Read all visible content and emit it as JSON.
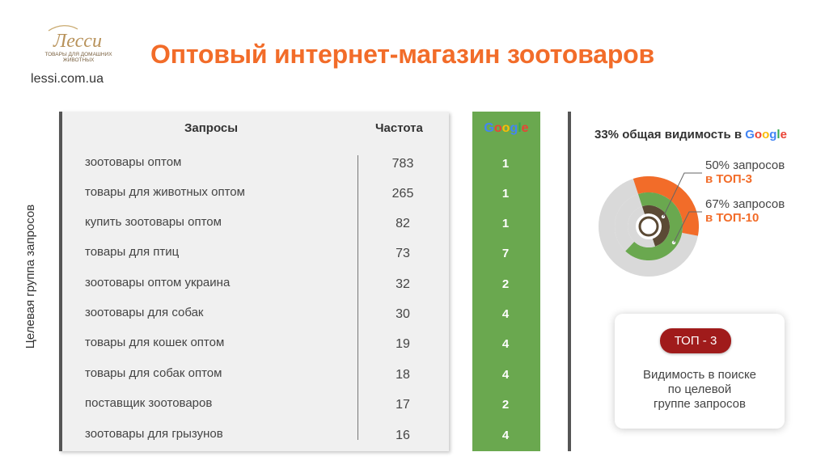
{
  "logo": {
    "name": "Лесси",
    "tagline_1": "ТОВАРЫ ДЛЯ ДОМАШНИХ",
    "tagline_2": "ЖИВОТНЫХ"
  },
  "site_url": "lessi.com.ua",
  "title": "Оптовый интернет-магазин зоотоваров",
  "side_label": "Целевая группа запросов",
  "table": {
    "col_query": "Запросы",
    "col_freq": "Частота",
    "col_google": [
      "G",
      "o",
      "o",
      "g",
      "l",
      "e"
    ],
    "rows": [
      {
        "query": "зоотовары оптом",
        "freq": "783",
        "pos": "1"
      },
      {
        "query": "товары для животных оптом",
        "freq": "265",
        "pos": "1"
      },
      {
        "query": "купить зоотовары оптом",
        "freq": "82",
        "pos": "1"
      },
      {
        "query": "товары для птиц",
        "freq": "73",
        "pos": "7"
      },
      {
        "query": "зоотовары оптом украина",
        "freq": "32",
        "pos": "2"
      },
      {
        "query": "зоотовары для собак",
        "freq": "30",
        "pos": "4"
      },
      {
        "query": "товары для кошек оптом",
        "freq": "19",
        "pos": "4"
      },
      {
        "query": "товары для собак оптом",
        "freq": "18",
        "pos": "4"
      },
      {
        "query": "поставщик зоотоваров",
        "freq": "17",
        "pos": "2"
      },
      {
        "query": "зоотовары для грызунов",
        "freq": "16",
        "pos": "4"
      }
    ]
  },
  "visibility": {
    "title_prefix": "33% общая видимость в ",
    "google_letters": [
      "G",
      "o",
      "o",
      "g",
      "l",
      "e"
    ],
    "top3_pct": "50% запросов",
    "top3_label": "в ТОП-3",
    "top10_pct": "67% запросов",
    "top10_label": "в ТОП-10",
    "rings": [
      {
        "name": "overall",
        "value": 0.33,
        "fill": "#f26c29"
      },
      {
        "name": "top-10",
        "value": 0.67,
        "fill": "#6aa84f"
      },
      {
        "name": "top-3",
        "value": 0.5,
        "fill": "#5b4a35"
      }
    ]
  },
  "card": {
    "badge": "ТОП - 3",
    "line_1": "Видимость в поиске",
    "line_2": "по целевой",
    "line_3": "группе запросов"
  },
  "colors": {
    "accent_orange": "#f26c29",
    "google_green": "#6aa84f",
    "badge_red": "#a01b1b",
    "ring_brown": "#5b4a35",
    "track_gray": "#d9d9d9",
    "google": [
      "#4285f4",
      "#ea4335",
      "#fbbc05",
      "#4285f4",
      "#34a853",
      "#ea4335"
    ]
  }
}
